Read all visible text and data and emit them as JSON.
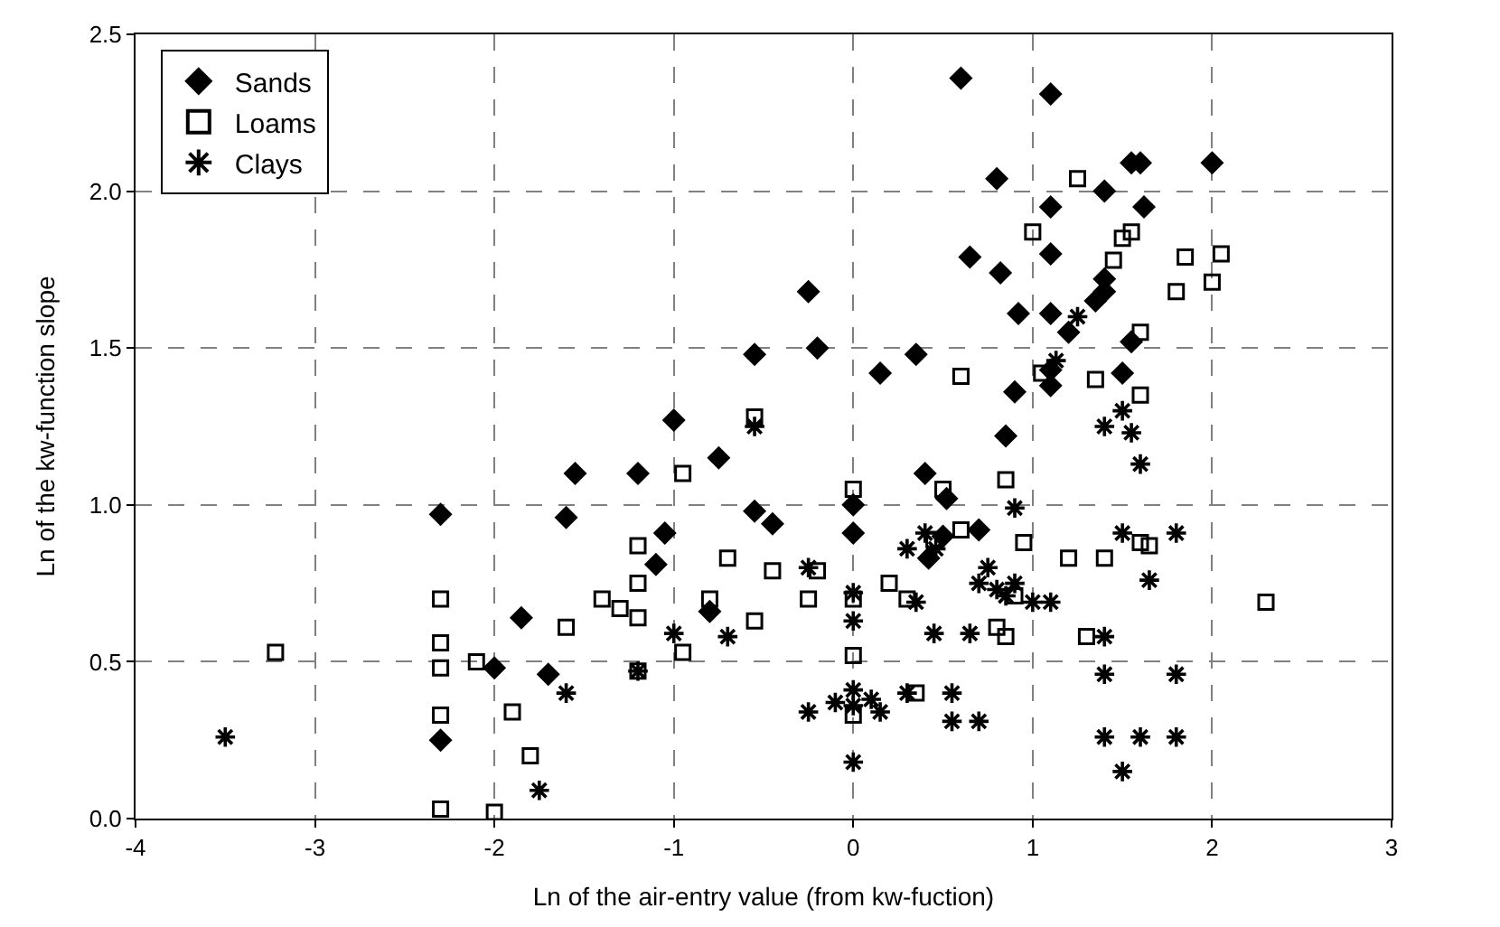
{
  "chart_data": {
    "type": "scatter",
    "xlabel": "Ln of the air-entry value (from kw-fuction)",
    "ylabel": "Ln of the kw-function slope",
    "xlim": [
      -4,
      3
    ],
    "xticks": [
      -4,
      -3,
      -2,
      -1,
      0,
      1,
      2,
      3
    ],
    "ylim": [
      0,
      2.5
    ],
    "yticks": [
      {
        "value": 0,
        "label": "0.0"
      },
      0.5,
      {
        "value": 1,
        "label": "1.0"
      },
      1.5,
      {
        "value": 2,
        "label": "2.0"
      },
      2.5
    ],
    "grid": true,
    "legend": "top left",
    "series": [
      {
        "name": "Sands",
        "color": "#000000",
        "marker": "diamond",
        "x": [
          -2.3,
          -2.3,
          -2.0,
          -1.85,
          -1.7,
          -1.6,
          -1.55,
          -1.2,
          -1.1,
          -1.05,
          -1.0,
          -0.8,
          -0.75,
          -0.55,
          -0.55,
          -0.45,
          -0.25,
          -0.2,
          0,
          0,
          0.15,
          0.35,
          0.4,
          0.42,
          0.5,
          0.52,
          0.6,
          0.7,
          0.65,
          0.8,
          0.82,
          0.85,
          0.9,
          0.92,
          1.1,
          1.1,
          1.1,
          1.1,
          1.1,
          1.1,
          1.2,
          1.35,
          1.4,
          1.4,
          1.4,
          1.5,
          1.55,
          1.6,
          1.55,
          1.62,
          2.0
        ],
        "values": [
          0.97,
          0.25,
          0.48,
          0.64,
          0.46,
          0.96,
          1.1,
          1.1,
          0.81,
          0.91,
          1.27,
          0.66,
          1.15,
          0.98,
          1.48,
          0.94,
          1.68,
          1.5,
          1.0,
          0.91,
          1.42,
          1.48,
          1.1,
          0.83,
          0.9,
          1.02,
          2.36,
          0.92,
          1.79,
          2.04,
          1.74,
          1.22,
          1.36,
          1.61,
          2.31,
          1.95,
          1.8,
          1.61,
          1.43,
          1.38,
          1.55,
          1.65,
          1.68,
          2.0,
          1.72,
          1.42,
          2.09,
          2.09,
          1.52,
          1.95,
          2.09
        ]
      },
      {
        "name": "Loams",
        "color": "#000000",
        "marker": "square",
        "x": [
          -3.22,
          -2.3,
          -2.3,
          -2.3,
          -2.3,
          -2.3,
          -2.1,
          -2.0,
          -1.9,
          -1.8,
          -1.6,
          -1.4,
          -1.3,
          -1.2,
          -1.2,
          -1.2,
          -1.2,
          -0.95,
          -0.95,
          -0.7,
          -0.8,
          -0.45,
          -0.55,
          -0.55,
          -0.25,
          -0.2,
          0,
          0,
          0,
          0,
          0.2,
          0.3,
          0.35,
          0.45,
          0.5,
          0.6,
          0.6,
          0.8,
          0.85,
          0.9,
          0.95,
          1.0,
          1.05,
          1.25,
          1.2,
          1.35,
          1.4,
          1.45,
          1.5,
          1.55,
          1.6,
          1.6,
          1.65,
          1.8,
          1.85,
          2.0,
          2.05,
          1.6,
          2.3,
          1.3,
          0.85
        ],
        "values": [
          0.53,
          0.7,
          0.56,
          0.48,
          0.33,
          0.03,
          0.5,
          0.02,
          0.34,
          0.2,
          0.61,
          0.7,
          0.67,
          0.64,
          0.75,
          0.87,
          0.47,
          0.53,
          1.1,
          0.83,
          0.7,
          0.79,
          0.63,
          1.28,
          0.7,
          0.79,
          1.05,
          0.7,
          0.52,
          0.33,
          0.75,
          0.7,
          0.4,
          0.89,
          1.05,
          0.92,
          1.41,
          0.61,
          1.08,
          0.71,
          0.88,
          1.87,
          1.42,
          2.04,
          0.83,
          1.4,
          0.83,
          1.78,
          1.85,
          1.87,
          1.55,
          1.35,
          0.87,
          1.68,
          1.79,
          1.71,
          1.8,
          0.88,
          0.69,
          0.58,
          0.58
        ]
      },
      {
        "name": "Clays",
        "color": "#000000",
        "marker": "cross",
        "x": [
          -3.5,
          -1.75,
          -1.6,
          -1.2,
          -1.0,
          -0.7,
          -0.55,
          -0.25,
          -0.25,
          0,
          0,
          0,
          0,
          0,
          -0.1,
          0.1,
          0.15,
          0.3,
          0.35,
          0.3,
          0.4,
          0.45,
          0.46,
          0.55,
          0.55,
          0.7,
          0.65,
          0.7,
          0.75,
          0.8,
          0.85,
          0.9,
          0.9,
          1.0,
          1.13,
          1.1,
          1.25,
          1.4,
          1.4,
          1.4,
          1.4,
          1.5,
          1.55,
          1.5,
          1.6,
          1.65,
          1.6,
          1.5,
          1.8,
          1.8,
          1.8
        ],
        "values": [
          0.26,
          0.09,
          0.4,
          0.47,
          0.59,
          0.58,
          1.25,
          0.8,
          0.34,
          0.72,
          0.63,
          0.41,
          0.36,
          0.18,
          0.37,
          0.38,
          0.34,
          0.86,
          0.69,
          0.4,
          0.91,
          0.59,
          0.86,
          0.4,
          0.31,
          0.31,
          0.59,
          0.75,
          0.8,
          0.73,
          0.71,
          0.99,
          0.75,
          0.69,
          1.46,
          0.69,
          1.6,
          1.25,
          0.58,
          0.46,
          0.26,
          1.3,
          1.23,
          0.15,
          1.13,
          0.76,
          0.26,
          0.91,
          0.91,
          0.46,
          0.26
        ]
      }
    ]
  }
}
